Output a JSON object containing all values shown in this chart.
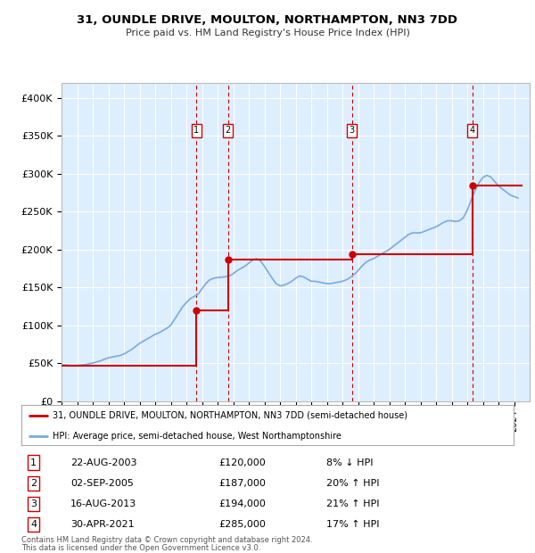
{
  "title": "31, OUNDLE DRIVE, MOULTON, NORTHAMPTON, NN3 7DD",
  "subtitle": "Price paid vs. HM Land Registry's House Price Index (HPI)",
  "ylabel_ticks": [
    "£0",
    "£50K",
    "£100K",
    "£150K",
    "£200K",
    "£250K",
    "£300K",
    "£350K",
    "£400K"
  ],
  "ytick_values": [
    0,
    50000,
    100000,
    150000,
    200000,
    250000,
    300000,
    350000,
    400000
  ],
  "ylim": [
    0,
    420000
  ],
  "xlim_start": 1995.0,
  "xlim_end": 2025.0,
  "legend_line1": "31, OUNDLE DRIVE, MOULTON, NORTHAMPTON, NN3 7DD (semi-detached house)",
  "legend_line2": "HPI: Average price, semi-detached house, West Northamptonshire",
  "transactions": [
    {
      "num": 1,
      "date": "22-AUG-2003",
      "price": 120000,
      "pct": "8%",
      "dir": "↓",
      "year": 2003.64
    },
    {
      "num": 2,
      "date": "02-SEP-2005",
      "price": 187000,
      "pct": "20%",
      "dir": "↑",
      "year": 2005.67
    },
    {
      "num": 3,
      "date": "16-AUG-2013",
      "price": 194000,
      "pct": "21%",
      "dir": "↑",
      "year": 2013.62
    },
    {
      "num": 4,
      "date": "30-APR-2021",
      "price": 285000,
      "pct": "17%",
      "dir": "↑",
      "year": 2021.33
    }
  ],
  "footer_line1": "Contains HM Land Registry data © Crown copyright and database right 2024.",
  "footer_line2": "This data is licensed under the Open Government Licence v3.0.",
  "hpi_color": "#7aaadd",
  "price_color": "#cc0000",
  "transaction_color": "#cc0000",
  "background_color": "#ddeeff",
  "grid_color": "#ffffff",
  "hpi_data": {
    "years": [
      1995.0,
      1995.25,
      1995.5,
      1995.75,
      1996.0,
      1996.25,
      1996.5,
      1996.75,
      1997.0,
      1997.25,
      1997.5,
      1997.75,
      1998.0,
      1998.25,
      1998.5,
      1998.75,
      1999.0,
      1999.25,
      1999.5,
      1999.75,
      2000.0,
      2000.25,
      2000.5,
      2000.75,
      2001.0,
      2001.25,
      2001.5,
      2001.75,
      2002.0,
      2002.25,
      2002.5,
      2002.75,
      2003.0,
      2003.25,
      2003.5,
      2003.75,
      2004.0,
      2004.25,
      2004.5,
      2004.75,
      2005.0,
      2005.25,
      2005.5,
      2005.75,
      2006.0,
      2006.25,
      2006.5,
      2006.75,
      2007.0,
      2007.25,
      2007.5,
      2007.75,
      2008.0,
      2008.25,
      2008.5,
      2008.75,
      2009.0,
      2009.25,
      2009.5,
      2009.75,
      2010.0,
      2010.25,
      2010.5,
      2010.75,
      2011.0,
      2011.25,
      2011.5,
      2011.75,
      2012.0,
      2012.25,
      2012.5,
      2012.75,
      2013.0,
      2013.25,
      2013.5,
      2013.75,
      2014.0,
      2014.25,
      2014.5,
      2014.75,
      2015.0,
      2015.25,
      2015.5,
      2015.75,
      2016.0,
      2016.25,
      2016.5,
      2016.75,
      2017.0,
      2017.25,
      2017.5,
      2017.75,
      2018.0,
      2018.25,
      2018.5,
      2018.75,
      2019.0,
      2019.25,
      2019.5,
      2019.75,
      2020.0,
      2020.25,
      2020.5,
      2020.75,
      2021.0,
      2021.25,
      2021.5,
      2021.75,
      2022.0,
      2022.25,
      2022.5,
      2022.75,
      2023.0,
      2023.25,
      2023.5,
      2023.75,
      2024.0,
      2024.25
    ],
    "values": [
      48000,
      47500,
      47000,
      46800,
      47000,
      47500,
      48000,
      49000,
      50000,
      51500,
      53000,
      55000,
      57000,
      58000,
      59000,
      60000,
      62000,
      65000,
      68000,
      72000,
      76000,
      79000,
      82000,
      85000,
      88000,
      90000,
      93000,
      96000,
      100000,
      108000,
      116000,
      124000,
      130000,
      135000,
      138000,
      141000,
      148000,
      155000,
      160000,
      162000,
      163000,
      163500,
      164000,
      165000,
      168000,
      172000,
      175000,
      178000,
      182000,
      186000,
      188000,
      185000,
      178000,
      170000,
      162000,
      155000,
      152000,
      153000,
      155000,
      158000,
      162000,
      165000,
      164000,
      161000,
      158000,
      158000,
      157000,
      156000,
      155000,
      155000,
      156000,
      157000,
      158000,
      160000,
      163000,
      167000,
      172000,
      178000,
      183000,
      186000,
      188000,
      191000,
      194000,
      197000,
      200000,
      204000,
      208000,
      212000,
      216000,
      220000,
      222000,
      222000,
      222000,
      224000,
      226000,
      228000,
      230000,
      233000,
      236000,
      238000,
      238000,
      237000,
      238000,
      242000,
      252000,
      265000,
      278000,
      288000,
      295000,
      298000,
      296000,
      290000,
      284000,
      280000,
      276000,
      272000,
      270000,
      268000
    ]
  },
  "price_data": {
    "years": [
      1995.0,
      2003.64,
      2003.64,
      2005.67,
      2005.67,
      2013.62,
      2013.62,
      2021.33,
      2021.33,
      2024.5
    ],
    "values": [
      46000,
      46000,
      120000,
      120000,
      187000,
      187000,
      194000,
      194000,
      285000,
      285000
    ]
  },
  "price_dots": {
    "years": [
      2003.64,
      2005.67,
      2013.62,
      2021.33
    ],
    "values": [
      120000,
      187000,
      194000,
      285000
    ]
  }
}
